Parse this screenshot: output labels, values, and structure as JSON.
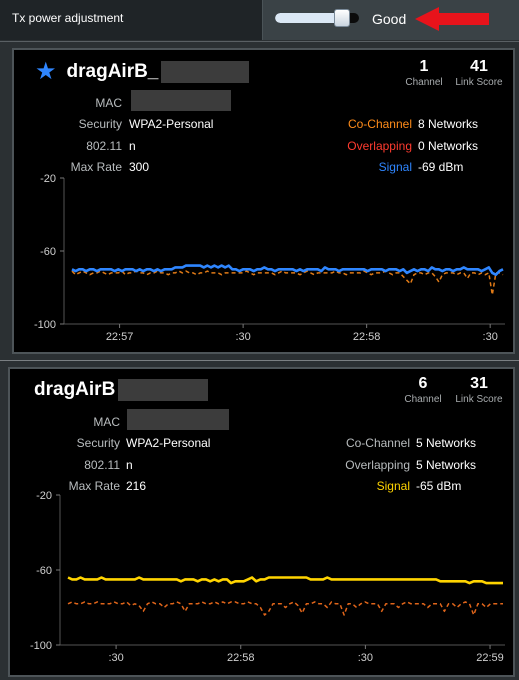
{
  "header": {
    "title": "Tx power adjustment",
    "tx_power_level": 0.78,
    "status": "Good"
  },
  "cards": [
    {
      "ssid": "dragAirB_",
      "starred": true,
      "channel_value": "1",
      "channel_label": "Channel",
      "linkscore_value": "41",
      "linkscore_label": "Link Score",
      "mac_label": "MAC",
      "security_label": "Security",
      "security_value": "WPA2-Personal",
      "phy_label": "802.11",
      "phy_value": "n",
      "maxrate_label": "Max Rate",
      "maxrate_value": "300",
      "cochannel_label": "Co-Channel",
      "cochannel_value": "8 Networks",
      "overlapping_label": "Overlapping",
      "overlapping_value": "0 Networks",
      "signal_label": "Signal",
      "signal_value": "-69 dBm",
      "colors": {
        "cochannel": "#ff8c1a",
        "overlapping": "#ff3b2f",
        "signal": "#2f86ff",
        "noise": "#e07a16"
      },
      "chart_data": {
        "type": "line",
        "y_ticks": [
          "-20",
          "-60",
          "-100"
        ],
        "ylim": [
          -100,
          -20
        ],
        "x_ticks": [
          "22:57",
          ":30",
          "22:58",
          ":30"
        ],
        "series": [
          {
            "values": [
              -70,
              -71,
              -70,
              -70,
              -71,
              -70,
              -70,
              -71,
              -70,
              -70,
              -70,
              -70,
              -71,
              -70,
              -71,
              -70,
              -70,
              -70,
              -71,
              -70,
              -71,
              -70,
              -70,
              -71,
              -70,
              -71,
              -70,
              -70,
              -70,
              -69,
              -69,
              -69,
              -68,
              -68,
              -68,
              -68,
              -68,
              -69,
              -68,
              -69,
              -68,
              -69,
              -68,
              -69,
              -68,
              -70,
              -70,
              -71,
              -70,
              -70,
              -70,
              -71,
              -70,
              -70,
              -69,
              -70,
              -70,
              -71,
              -70,
              -70,
              -70,
              -70,
              -70,
              -71,
              -70,
              -71,
              -70,
              -70,
              -70,
              -70,
              -71,
              -69,
              -70,
              -70,
              -70,
              -71,
              -70,
              -70,
              -70,
              -70,
              -70,
              -70,
              -70,
              -71,
              -70,
              -70,
              -70,
              -70,
              -71,
              -70,
              -70,
              -70,
              -71,
              -70,
              -72,
              -71,
              -70,
              -71,
              -70,
              -70,
              -71,
              -69,
              -70,
              -70,
              -71,
              -70,
              -70,
              -71,
              -70,
              -70,
              -69,
              -70,
              -70,
              -70,
              -70,
              -71,
              -70,
              -69,
              -72,
              -73,
              -71,
              -70
            ]
          },
          {
            "values": [
              -71,
              -73,
              -72,
              -71,
              -72,
              -73,
              -72,
              -72,
              -71,
              -72,
              -73,
              -72,
              -72,
              -72,
              -71,
              -73,
              -72,
              -72,
              -71,
              -72,
              -72,
              -73,
              -72,
              -72,
              -71,
              -72,
              -72,
              -73,
              -72,
              -72,
              -71,
              -72,
              -71,
              -72,
              -72,
              -73,
              -72,
              -72,
              -71,
              -72,
              -72,
              -72,
              -73,
              -72,
              -72,
              -72,
              -72,
              -72,
              -72,
              -71,
              -72,
              -73,
              -72,
              -72,
              -72,
              -72,
              -72,
              -73,
              -72,
              -71,
              -72,
              -72,
              -72,
              -72,
              -73,
              -72,
              -71,
              -72,
              -73,
              -72,
              -72,
              -72,
              -72,
              -72,
              -71,
              -72,
              -72,
              -73,
              -72,
              -72,
              -72,
              -72,
              -71,
              -72,
              -73,
              -72,
              -72,
              -72,
              -71,
              -72,
              -73,
              -72,
              -72,
              -74,
              -76,
              -78,
              -73,
              -72,
              -72,
              -73,
              -72,
              -72,
              -74,
              -77,
              -73,
              -72,
              -72,
              -72,
              -73,
              -72,
              -72,
              -75,
              -72,
              -72,
              -73,
              -72,
              -73,
              -72,
              -84,
              -72,
              -72,
              -73
            ]
          }
        ]
      }
    },
    {
      "ssid": "dragAirB",
      "starred": false,
      "channel_value": "6",
      "channel_label": "Channel",
      "linkscore_value": "31",
      "linkscore_label": "Link Score",
      "mac_label": "MAC",
      "security_label": "Security",
      "security_value": "WPA2-Personal",
      "phy_label": "802.11",
      "phy_value": "n",
      "maxrate_label": "Max Rate",
      "maxrate_value": "216",
      "cochannel_label": "Co-Channel",
      "cochannel_value": "5 Networks",
      "overlapping_label": "Overlapping",
      "overlapping_value": "5 Networks",
      "signal_label": "Signal",
      "signal_value": "-65 dBm",
      "colors": {
        "cochannel": "#b8bcbe",
        "overlapping": "#b8bcbe",
        "signal": "#ffd400",
        "noise": "#e0651a"
      },
      "chart_data": {
        "type": "line",
        "y_ticks": [
          "-20",
          "-60",
          "-100"
        ],
        "ylim": [
          -100,
          -20
        ],
        "x_ticks": [
          ":30",
          "22:58",
          ":30",
          "22:59"
        ],
        "series": [
          {
            "values": [
              -64,
              -65,
              -65,
              -64,
              -65,
              -65,
              -65,
              -65,
              -64,
              -65,
              -65,
              -65,
              -65,
              -65,
              -65,
              -65,
              -65,
              -64,
              -65,
              -65,
              -65,
              -65,
              -65,
              -65,
              -65,
              -65,
              -65,
              -66,
              -65,
              -65,
              -65,
              -66,
              -65,
              -65,
              -66,
              -65,
              -66,
              -65,
              -65,
              -67,
              -66,
              -66,
              -66,
              -65,
              -64,
              -66,
              -65,
              -65,
              -64,
              -64,
              -64,
              -64,
              -64,
              -64,
              -64,
              -64,
              -64,
              -64,
              -65,
              -65,
              -65,
              -65,
              -64,
              -65,
              -65,
              -65,
              -65,
              -65,
              -65,
              -65,
              -65,
              -65,
              -65,
              -65,
              -65,
              -65,
              -65,
              -65,
              -65,
              -65,
              -65,
              -65,
              -65,
              -65,
              -65,
              -65,
              -65,
              -65,
              -65,
              -66,
              -66,
              -66,
              -66,
              -66,
              -66,
              -66,
              -67,
              -66,
              -66,
              -66,
              -67,
              -67,
              -67,
              -67,
              -67
            ]
          },
          {
            "values": [
              -78,
              -77,
              -78,
              -78,
              -77,
              -78,
              -78,
              -77,
              -78,
              -78,
              -78,
              -77,
              -78,
              -78,
              -77,
              -79,
              -78,
              -79,
              -82,
              -78,
              -77,
              -78,
              -78,
              -80,
              -78,
              -78,
              -77,
              -78,
              -82,
              -78,
              -78,
              -78,
              -77,
              -78,
              -78,
              -77,
              -78,
              -77,
              -78,
              -77,
              -77,
              -78,
              -78,
              -77,
              -78,
              -78,
              -80,
              -84,
              -82,
              -78,
              -78,
              -78,
              -80,
              -78,
              -77,
              -79,
              -83,
              -78,
              -78,
              -77,
              -78,
              -78,
              -80,
              -77,
              -78,
              -78,
              -84,
              -78,
              -78,
              -80,
              -78,
              -77,
              -78,
              -78,
              -78,
              -82,
              -78,
              -78,
              -78,
              -80,
              -78,
              -77,
              -78,
              -78,
              -78,
              -78,
              -80,
              -78,
              -78,
              -78,
              -82,
              -78,
              -78,
              -80,
              -78,
              -77,
              -78,
              -84,
              -78,
              -78,
              -80,
              -78,
              -78,
              -78,
              -78
            ]
          }
        ]
      }
    }
  ]
}
